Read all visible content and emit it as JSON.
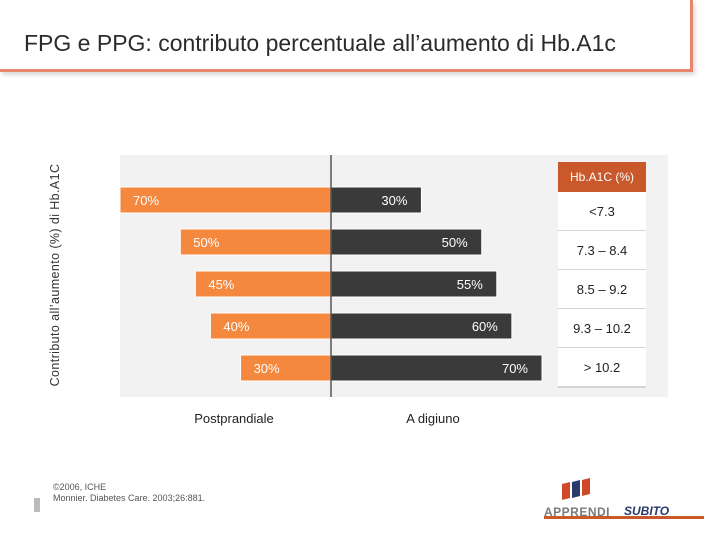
{
  "title": "FPG e PPG: contributo percentuale all’aumento di Hb.A1c",
  "chart_data": {
    "type": "bar",
    "orientation": "horizontal-diverging",
    "ylabel": "Contributo all’aumento (%) di Hb.A1C",
    "categories_header": "Hb.A1C (%)",
    "categories": [
      "<7.3",
      "7.3 – 8.4",
      "8.5 – 9.2",
      "9.3 – 10.2",
      "> 10.2"
    ],
    "series": [
      {
        "name": "Postprandiale",
        "values": [
          70,
          50,
          45,
          40,
          30
        ],
        "labels": [
          "70%",
          "50%",
          "45%",
          "40%",
          "30%"
        ]
      },
      {
        "name": "A digiuno",
        "values": [
          30,
          50,
          55,
          60,
          70
        ],
        "labels": [
          "30%",
          "50%",
          "55%",
          "60%",
          "70%"
        ]
      }
    ],
    "colors": {
      "postprandial": "#f4883f",
      "fasting": "#3a3a3a",
      "header": "#c9582b"
    }
  },
  "footnote": {
    "line1": "©2006, ICHE",
    "line2": "Monnier. Diabetes Care. 2003;26:881."
  },
  "logo": {
    "text1": "APPRENDI",
    "text2": "SUBITO"
  }
}
